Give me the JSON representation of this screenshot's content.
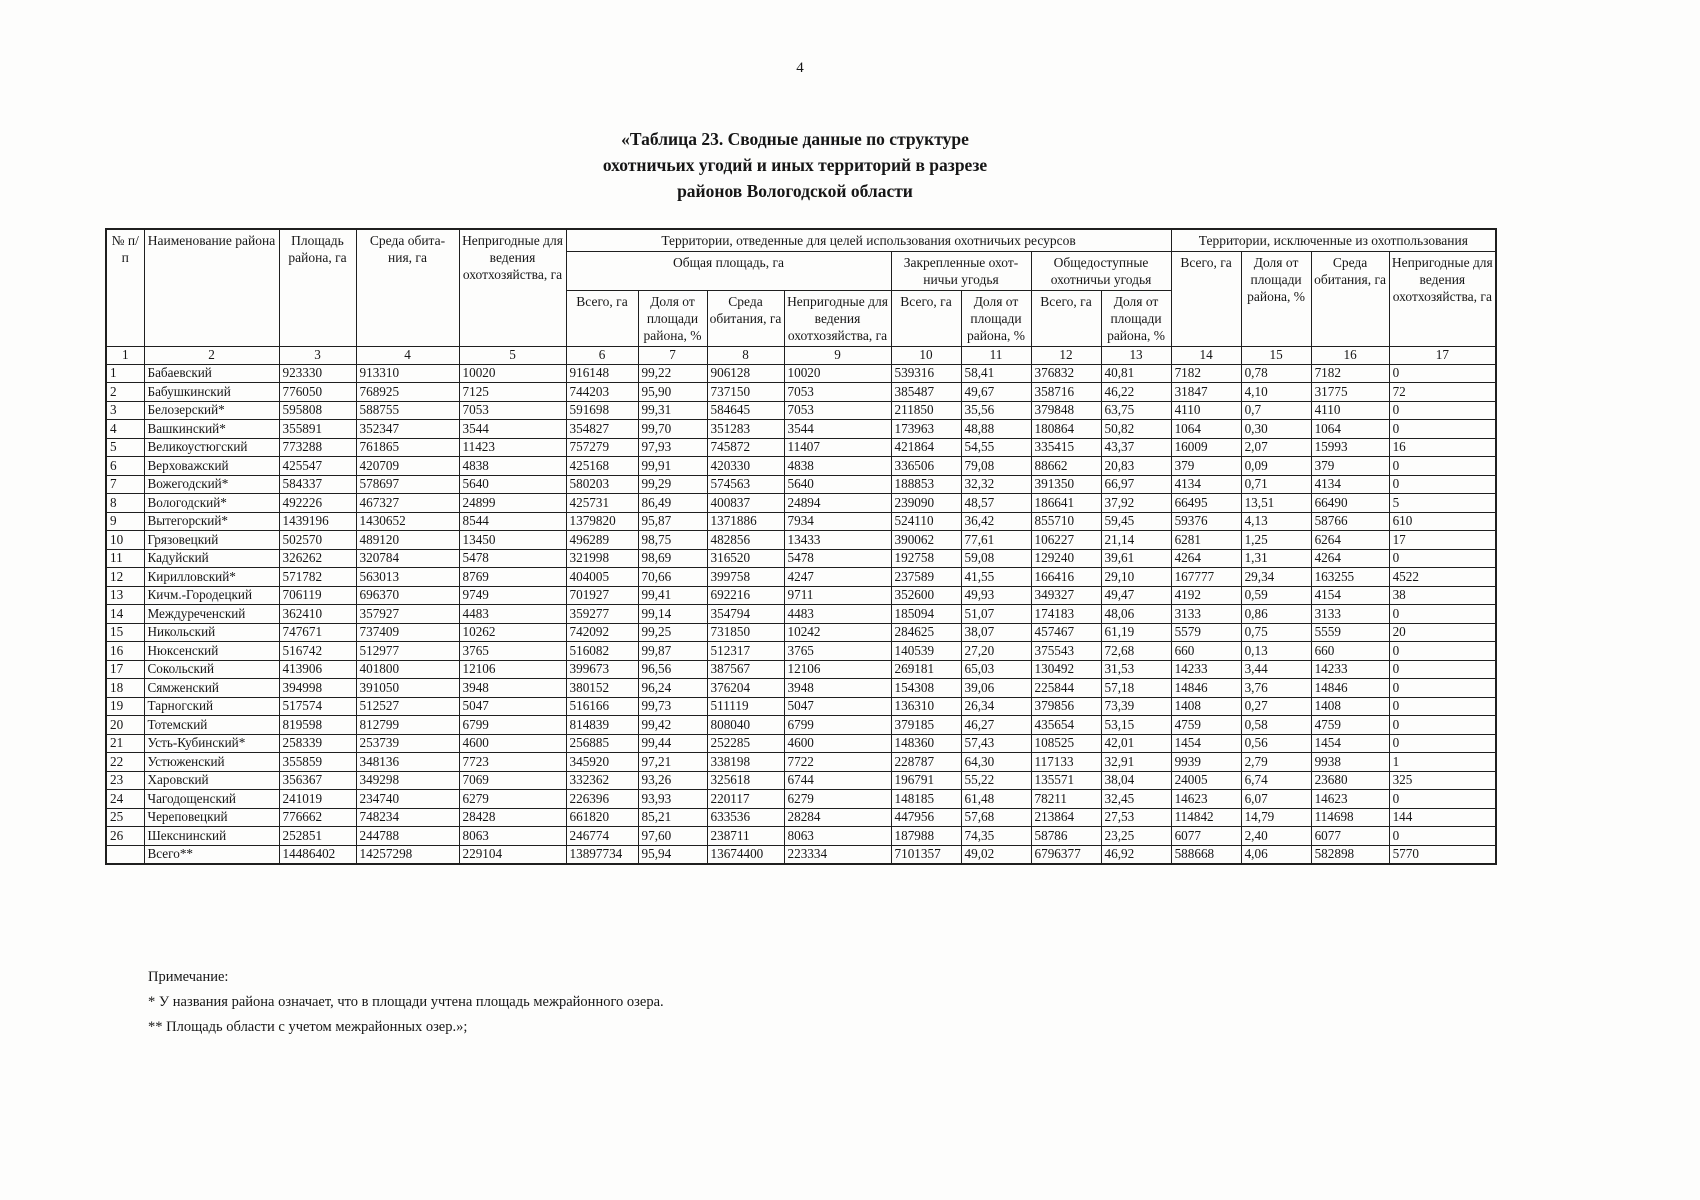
{
  "page": {
    "number": "4"
  },
  "title": {
    "line1": "«Таблица 23. Сводные данные по структуре",
    "line2": "охотничьих угодий и иных территорий в разрезе",
    "line3": "районов Вологодской области"
  },
  "table": {
    "headers": {
      "no": "№ п/п",
      "district": "Наименование района",
      "district_area": "Площадь района, га",
      "habitat": "Среда обита-ния, га",
      "unsuitable": "Непригодные для ведения охотхозяйства, га",
      "allocated_group": "Территории, отведенные для целей использования охотничьих ресурсов",
      "excluded_group": "Территории, исключенные из охотпользования",
      "total_area_group": "Общая площадь, га",
      "assigned_group": "Закрепленные охот-ничьи угодья",
      "public_group": "Общедоступные охотничьи угодья",
      "total_ha": "Всего, га",
      "share_pct": "Доля от площади района, %",
      "habitat_ha": "Среда обитания, га",
      "unsuitable_ha": "Непригодные для ведения охотхозяйства, га"
    },
    "column_numbers": [
      "1",
      "2",
      "3",
      "4",
      "5",
      "6",
      "7",
      "8",
      "9",
      "10",
      "11",
      "12",
      "13",
      "14",
      "15",
      "16",
      "17"
    ],
    "rows": [
      [
        "1",
        "Бабаевский",
        "923330",
        "913310",
        "10020",
        "916148",
        "99,22",
        "906128",
        "10020",
        "539316",
        "58,41",
        "376832",
        "40,81",
        "7182",
        "0,78",
        "7182",
        "0"
      ],
      [
        "2",
        "Бабушкинский",
        "776050",
        "768925",
        "7125",
        "744203",
        "95,90",
        "737150",
        "7053",
        "385487",
        "49,67",
        "358716",
        "46,22",
        "31847",
        "4,10",
        "31775",
        "72"
      ],
      [
        "3",
        "Белозерский*",
        "595808",
        "588755",
        "7053",
        "591698",
        "99,31",
        "584645",
        "7053",
        "211850",
        "35,56",
        "379848",
        "63,75",
        "4110",
        "0,7",
        "4110",
        "0"
      ],
      [
        "4",
        "Вашкинский*",
        "355891",
        "352347",
        "3544",
        "354827",
        "99,70",
        "351283",
        "3544",
        "173963",
        "48,88",
        "180864",
        "50,82",
        "1064",
        "0,30",
        "1064",
        "0"
      ],
      [
        "5",
        "Великоустюгский",
        "773288",
        "761865",
        "11423",
        "757279",
        "97,93",
        "745872",
        "11407",
        "421864",
        "54,55",
        "335415",
        "43,37",
        "16009",
        "2,07",
        "15993",
        "16"
      ],
      [
        "6",
        "Верховажский",
        "425547",
        "420709",
        "4838",
        "425168",
        "99,91",
        "420330",
        "4838",
        "336506",
        "79,08",
        "88662",
        "20,83",
        "379",
        "0,09",
        "379",
        "0"
      ],
      [
        "7",
        "Вожегодский*",
        "584337",
        "578697",
        "5640",
        "580203",
        "99,29",
        "574563",
        "5640",
        "188853",
        "32,32",
        "391350",
        "66,97",
        "4134",
        "0,71",
        "4134",
        "0"
      ],
      [
        "8",
        "Вологодский*",
        "492226",
        "467327",
        "24899",
        "425731",
        "86,49",
        "400837",
        "24894",
        "239090",
        "48,57",
        "186641",
        "37,92",
        "66495",
        "13,51",
        "66490",
        "5"
      ],
      [
        "9",
        "Вытегорский*",
        "1439196",
        "1430652",
        "8544",
        "1379820",
        "95,87",
        "1371886",
        "7934",
        "524110",
        "36,42",
        "855710",
        "59,45",
        "59376",
        "4,13",
        "58766",
        "610"
      ],
      [
        "10",
        "Грязовецкий",
        "502570",
        "489120",
        "13450",
        "496289",
        "98,75",
        "482856",
        "13433",
        "390062",
        "77,61",
        "106227",
        "21,14",
        "6281",
        "1,25",
        "6264",
        "17"
      ],
      [
        "11",
        "Кадуйский",
        "326262",
        "320784",
        "5478",
        "321998",
        "98,69",
        "316520",
        "5478",
        "192758",
        "59,08",
        "129240",
        "39,61",
        "4264",
        "1,31",
        "4264",
        "0"
      ],
      [
        "12",
        "Кирилловский*",
        "571782",
        "563013",
        "8769",
        "404005",
        "70,66",
        "399758",
        "4247",
        "237589",
        "41,55",
        "166416",
        "29,10",
        "167777",
        "29,34",
        "163255",
        "4522"
      ],
      [
        "13",
        "Кичм.-Городецкий",
        "706119",
        "696370",
        "9749",
        "701927",
        "99,41",
        "692216",
        "9711",
        "352600",
        "49,93",
        "349327",
        "49,47",
        "4192",
        "0,59",
        "4154",
        "38"
      ],
      [
        "14",
        "Междуреченский",
        "362410",
        "357927",
        "4483",
        "359277",
        "99,14",
        "354794",
        "4483",
        "185094",
        "51,07",
        "174183",
        "48,06",
        "3133",
        "0,86",
        "3133",
        "0"
      ],
      [
        "15",
        "Никольский",
        "747671",
        "737409",
        "10262",
        "742092",
        "99,25",
        "731850",
        "10242",
        "284625",
        "38,07",
        "457467",
        "61,19",
        "5579",
        "0,75",
        "5559",
        "20"
      ],
      [
        "16",
        "Нюксенский",
        "516742",
        "512977",
        "3765",
        "516082",
        "99,87",
        "512317",
        "3765",
        "140539",
        "27,20",
        "375543",
        "72,68",
        "660",
        "0,13",
        "660",
        "0"
      ],
      [
        "17",
        "Сокольский",
        "413906",
        "401800",
        "12106",
        "399673",
        "96,56",
        "387567",
        "12106",
        "269181",
        "65,03",
        "130492",
        "31,53",
        "14233",
        "3,44",
        "14233",
        "0"
      ],
      [
        "18",
        "Сямженский",
        "394998",
        "391050",
        "3948",
        "380152",
        "96,24",
        "376204",
        "3948",
        "154308",
        "39,06",
        "225844",
        "57,18",
        "14846",
        "3,76",
        "14846",
        "0"
      ],
      [
        "19",
        "Тарногский",
        "517574",
        "512527",
        "5047",
        "516166",
        "99,73",
        "511119",
        "5047",
        "136310",
        "26,34",
        "379856",
        "73,39",
        "1408",
        "0,27",
        "1408",
        "0"
      ],
      [
        "20",
        "Тотемский",
        "819598",
        "812799",
        "6799",
        "814839",
        "99,42",
        "808040",
        "6799",
        "379185",
        "46,27",
        "435654",
        "53,15",
        "4759",
        "0,58",
        "4759",
        "0"
      ],
      [
        "21",
        "Усть-Кубинский*",
        "258339",
        "253739",
        "4600",
        "256885",
        "99,44",
        "252285",
        "4600",
        "148360",
        "57,43",
        "108525",
        "42,01",
        "1454",
        "0,56",
        "1454",
        "0"
      ],
      [
        "22",
        "Устюженский",
        "355859",
        "348136",
        "7723",
        "345920",
        "97,21",
        "338198",
        "7722",
        "228787",
        "64,30",
        "117133",
        "32,91",
        "9939",
        "2,79",
        "9938",
        "1"
      ],
      [
        "23",
        "Харовский",
        "356367",
        "349298",
        "7069",
        "332362",
        "93,26",
        "325618",
        "6744",
        "196791",
        "55,22",
        "135571",
        "38,04",
        "24005",
        "6,74",
        "23680",
        "325"
      ],
      [
        "24",
        "Чагодощенский",
        "241019",
        "234740",
        "6279",
        "226396",
        "93,93",
        "220117",
        "6279",
        "148185",
        "61,48",
        "78211",
        "32,45",
        "14623",
        "6,07",
        "14623",
        "0"
      ],
      [
        "25",
        "Череповецкий",
        "776662",
        "748234",
        "28428",
        "661820",
        "85,21",
        "633536",
        "28284",
        "447956",
        "57,68",
        "213864",
        "27,53",
        "114842",
        "14,79",
        "114698",
        "144"
      ],
      [
        "26",
        "Шекснинский",
        "252851",
        "244788",
        "8063",
        "246774",
        "97,60",
        "238711",
        "8063",
        "187988",
        "74,35",
        "58786",
        "23,25",
        "6077",
        "2,40",
        "6077",
        "0"
      ],
      [
        "",
        "Всего**",
        "14486402",
        "14257298",
        "229104",
        "13897734",
        "95,94",
        "13674400",
        "223334",
        "7101357",
        "49,02",
        "6796377",
        "46,92",
        "588668",
        "4,06",
        "582898",
        "5770"
      ]
    ]
  },
  "notes": {
    "heading": "Примечание:",
    "note1": "* У названия района означает, что в площади учтена площадь межрайонного озера.",
    "note2": "** Площадь области с учетом межрайонных озер.»;"
  }
}
